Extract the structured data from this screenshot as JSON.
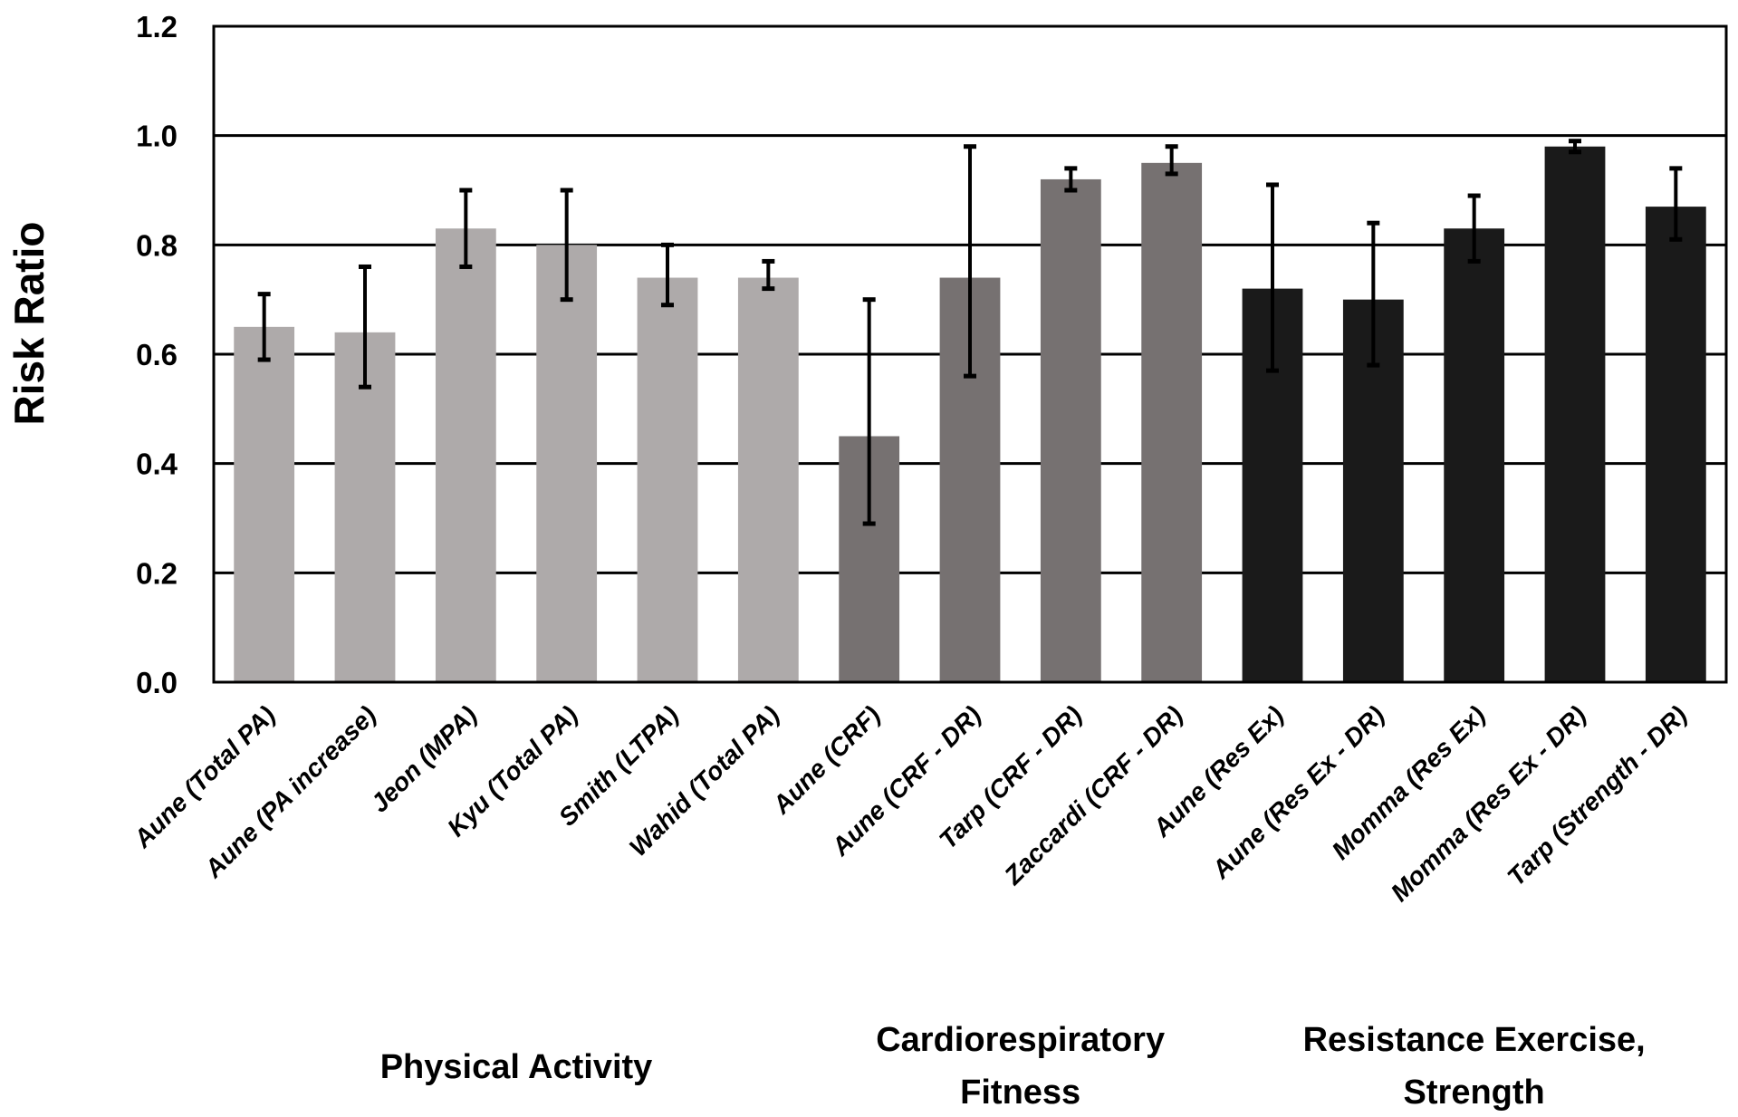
{
  "chart_data": {
    "type": "bar",
    "title": "",
    "xlabel": "",
    "ylabel": "Risk Ratio",
    "ylim": [
      0,
      1.2
    ],
    "yticks": [
      "0.0",
      "0.2",
      "0.4",
      "0.6",
      "0.8",
      "1.0",
      "1.2"
    ],
    "grid": true,
    "categories": [
      "Aune (Total PA)",
      "Aune (PA increase)",
      "Jeon (MPA)",
      "Kyu (Total PA)",
      "Smith (LTPA)",
      "Wahid (Total PA)",
      "Aune (CRF)",
      "Aune (CRF - DR)",
      "Tarp (CRF - DR)",
      "Zaccardi (CRF - DR)",
      "Aune (Res Ex)",
      "Aune (Res Ex - DR)",
      "Momma (Res Ex)",
      "Momma (Res Ex - DR)",
      "Tarp (Strength - DR)"
    ],
    "values": [
      0.65,
      0.64,
      0.83,
      0.8,
      0.74,
      0.74,
      0.45,
      0.74,
      0.92,
      0.95,
      0.72,
      0.7,
      0.83,
      0.98,
      0.87
    ],
    "ci_lower": [
      0.59,
      0.54,
      0.76,
      0.7,
      0.69,
      0.72,
      0.29,
      0.56,
      0.9,
      0.93,
      0.57,
      0.58,
      0.77,
      0.97,
      0.81
    ],
    "ci_upper": [
      0.71,
      0.76,
      0.9,
      0.9,
      0.8,
      0.77,
      0.7,
      0.98,
      0.94,
      0.98,
      0.91,
      0.84,
      0.89,
      0.99,
      0.94
    ],
    "groups": [
      {
        "name": "Physical Activity",
        "lines": [
          "Physical Activity"
        ],
        "start": 0,
        "end": 5,
        "color": "#AEAAAA"
      },
      {
        "name": "Cardiorespiratory Fitness",
        "lines": [
          "Cardiorespiratory",
          "Fitness"
        ],
        "start": 6,
        "end": 9,
        "color": "#767171"
      },
      {
        "name": "Resistance Exercise, Strength",
        "lines": [
          "Resistance Exercise,",
          "Strength"
        ],
        "start": 10,
        "end": 14,
        "color": "#1A1A1A"
      }
    ]
  }
}
